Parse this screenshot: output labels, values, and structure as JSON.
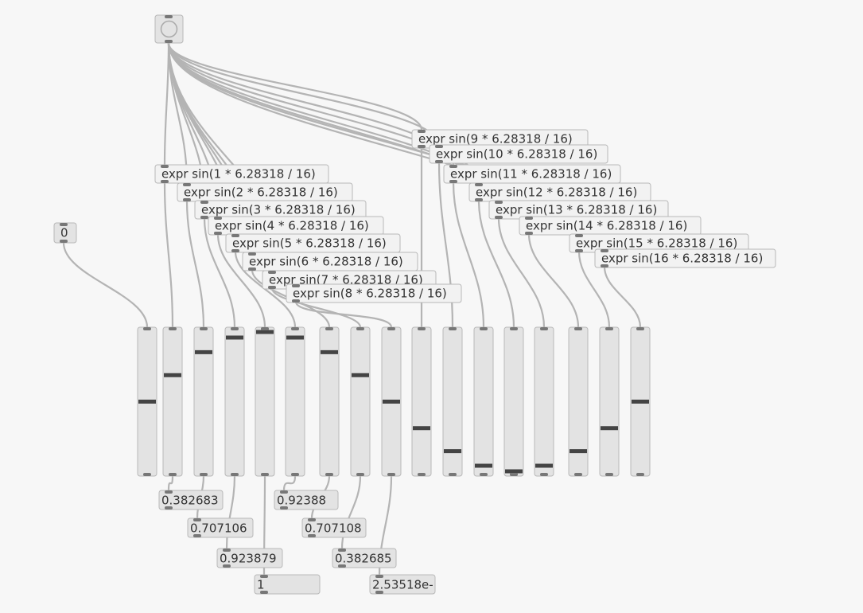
{
  "toggle_number": "0",
  "expressions": [
    "expr sin(1 * 6.28318 / 16)",
    "expr sin(2 * 6.28318 / 16)",
    "expr sin(3 * 6.28318 / 16)",
    "expr sin(4 * 6.28318 / 16)",
    "expr sin(5 * 6.28318 / 16)",
    "expr sin(6 * 6.28318 / 16)",
    "expr sin(7 * 6.28318 / 16)",
    "expr sin(8 * 6.28318 / 16)",
    "expr sin(9 * 6.28318 / 16)",
    "expr sin(10 * 6.28318 / 16)",
    "expr sin(11 * 6.28318 / 16)",
    "expr sin(12 * 6.28318 / 16)",
    "expr sin(13 * 6.28318 / 16)",
    "expr sin(14 * 6.28318 / 16)",
    "expr sin(15 * 6.28318 / 16)",
    "expr sin(16 * 6.28318 / 16)"
  ],
  "sliders": {
    "min": -1,
    "max": 1,
    "values": [
      0,
      0.38,
      0.71,
      0.92,
      1,
      0.92,
      0.71,
      0.38,
      0,
      -0.38,
      -0.71,
      -0.92,
      -1,
      -0.92,
      -0.71,
      -0.38,
      0
    ]
  },
  "outputs": [
    "0.382683",
    "0.707106",
    "0.923879",
    "1",
    "0.92388",
    "0.707108",
    "0.382685",
    "2.53518e-"
  ]
}
